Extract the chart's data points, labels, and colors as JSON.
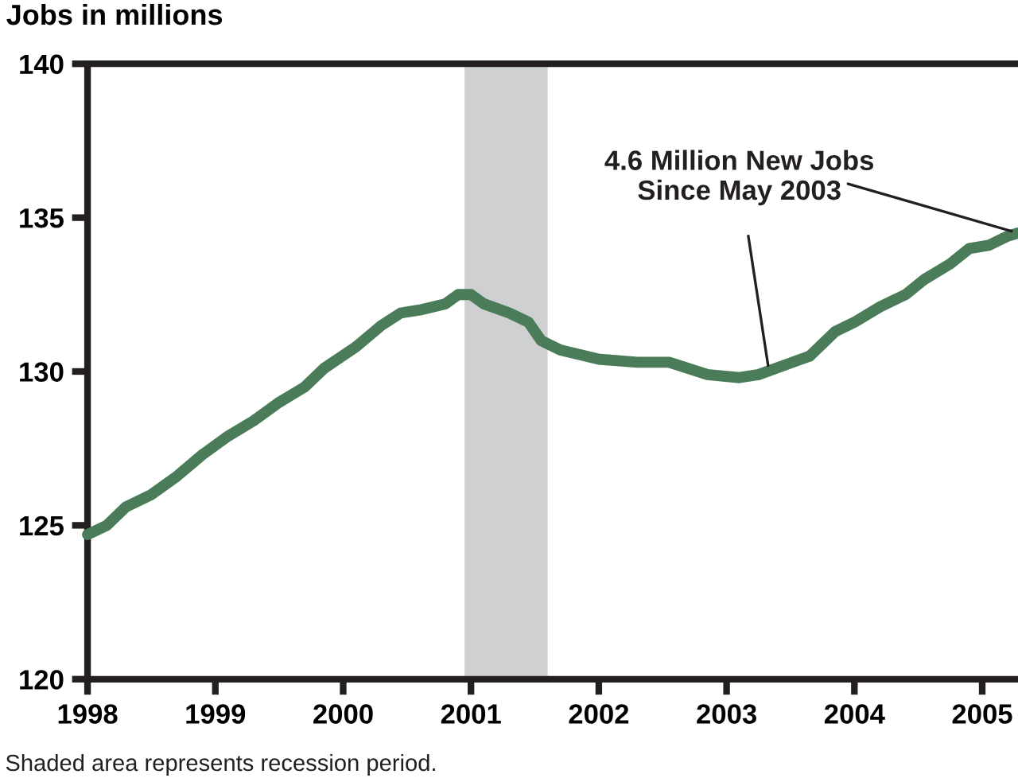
{
  "chart_data": {
    "type": "line",
    "ylabel": "Jobs in millions",
    "annotations": [
      {
        "text": "4.6 Million New Jobs\nSince May 2003",
        "x": 2003.33,
        "y": 130.05
      },
      "Shaded area represents recession period."
    ],
    "series": [
      {
        "color": "#4a7c59",
        "x": [
          1998.0,
          1998.15,
          1998.3,
          1998.5,
          1998.7,
          1998.9,
          1999.1,
          1999.3,
          1999.5,
          1999.7,
          1999.85,
          2000.1,
          2000.3,
          2000.45,
          2000.6,
          2000.8,
          2000.9,
          2001.0,
          2001.1,
          2001.3,
          2001.45,
          2001.55,
          2001.7,
          2002.0,
          2002.3,
          2002.55,
          2002.7,
          2002.85,
          2003.1,
          2003.25,
          2003.45,
          2003.65,
          2003.85,
          2004.0,
          2004.2,
          2004.4,
          2004.55,
          2004.75,
          2004.9,
          2005.05,
          2005.2,
          2005.28
        ],
        "values": [
          124.7,
          125.0,
          125.6,
          126.0,
          126.6,
          127.3,
          127.9,
          128.4,
          129.0,
          129.5,
          130.1,
          130.8,
          131.5,
          131.9,
          132.0,
          132.2,
          132.5,
          132.5,
          132.2,
          131.9,
          131.6,
          131.0,
          130.7,
          130.4,
          130.3,
          130.3,
          130.1,
          129.9,
          129.8,
          129.9,
          130.2,
          130.5,
          131.3,
          131.6,
          132.1,
          132.5,
          133.0,
          133.5,
          134.0,
          134.1,
          134.4,
          134.5
        ]
      }
    ],
    "bands": [
      {
        "axis": "x",
        "from": 2000.95,
        "to": 2001.6,
        "color": "#cfd0d2"
      }
    ],
    "xlim": [
      1998,
      2005.28
    ],
    "xticks": [
      1998,
      1999,
      2000,
      2001,
      2002,
      2003,
      2004,
      2005
    ],
    "ylim": [
      120,
      140
    ],
    "yticks": [
      120,
      125,
      130,
      135,
      140
    ],
    "grid": false,
    "legend": false,
    "marker": "none",
    "line_style": "solid"
  }
}
